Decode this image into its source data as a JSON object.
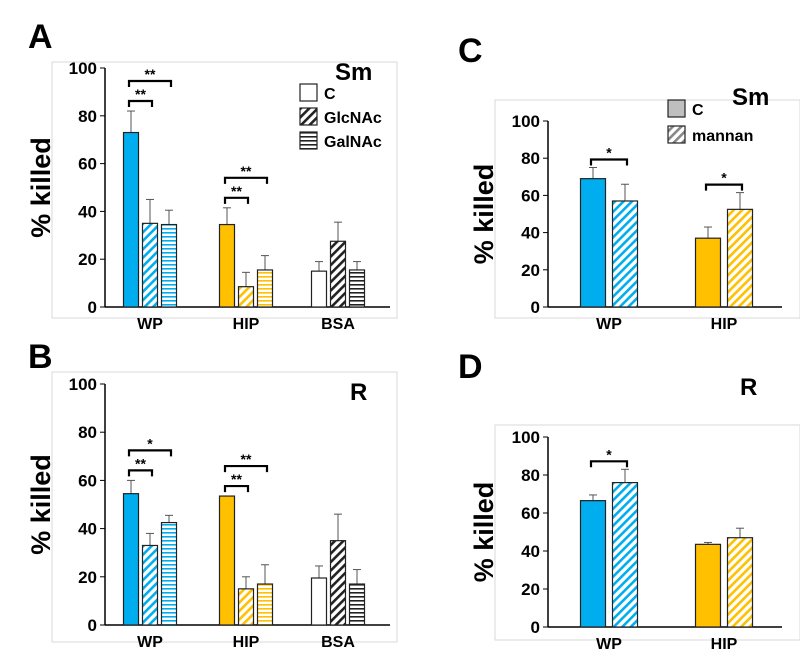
{
  "colors": {
    "WP": "#00aeef",
    "HIP": "#ffc000",
    "BSA": "#ffffff",
    "stroke": "#222222"
  },
  "chart_data": [
    {
      "type": "bar",
      "panel": "A",
      "title": "Sm",
      "ylabel": "% killed",
      "ylim": [
        0,
        100
      ],
      "yticks": [
        0,
        20,
        40,
        60,
        80,
        100
      ],
      "categories": [
        "WP",
        "HIP",
        "BSA"
      ],
      "series": [
        {
          "name": "C",
          "pattern": "solid",
          "values": [
            73,
            34.5,
            15
          ],
          "errors": [
            9,
            7,
            4
          ]
        },
        {
          "name": "GlcNAc",
          "pattern": "diagonal",
          "values": [
            35,
            8.5,
            27.5
          ],
          "errors": [
            10,
            6,
            8
          ]
        },
        {
          "name": "GalNAc",
          "pattern": "horizontal",
          "values": [
            34.5,
            15.5,
            15.5
          ],
          "errors": [
            6,
            6,
            3.5
          ]
        }
      ],
      "significance": [
        {
          "category": "WP",
          "from": 0,
          "to": 1,
          "label": "**"
        },
        {
          "category": "WP",
          "from": 0,
          "to": 2,
          "label": "**"
        },
        {
          "category": "HIP",
          "from": 0,
          "to": 1,
          "label": "**"
        },
        {
          "category": "HIP",
          "from": 0,
          "to": 2,
          "label": "**"
        }
      ],
      "legend": "top-right"
    },
    {
      "type": "bar",
      "panel": "B",
      "title": "R",
      "ylabel": "% killed",
      "ylim": [
        0,
        100
      ],
      "yticks": [
        0,
        20,
        40,
        60,
        80,
        100
      ],
      "categories": [
        "WP",
        "HIP",
        "BSA"
      ],
      "series": [
        {
          "name": "C",
          "pattern": "solid",
          "values": [
            54.5,
            53.5,
            19.5
          ],
          "errors": [
            5.5,
            0,
            5
          ]
        },
        {
          "name": "GlcNAc",
          "pattern": "diagonal",
          "values": [
            33,
            15,
            35
          ],
          "errors": [
            5,
            5,
            11
          ]
        },
        {
          "name": "GalNAc",
          "pattern": "horizontal",
          "values": [
            42.5,
            17,
            17
          ],
          "errors": [
            3,
            8,
            6
          ]
        }
      ],
      "significance": [
        {
          "category": "WP",
          "from": 0,
          "to": 1,
          "label": "**"
        },
        {
          "category": "WP",
          "from": 0,
          "to": 2,
          "label": "*"
        },
        {
          "category": "HIP",
          "from": 0,
          "to": 1,
          "label": "**"
        },
        {
          "category": "HIP",
          "from": 0,
          "to": 2,
          "label": "**"
        }
      ],
      "legend": "none"
    },
    {
      "type": "bar",
      "panel": "C",
      "title": "Sm",
      "ylabel": "% killed",
      "ylim": [
        0,
        100
      ],
      "yticks": [
        0,
        20,
        40,
        60,
        80,
        100
      ],
      "categories": [
        "WP",
        "HIP"
      ],
      "series": [
        {
          "name": "C",
          "pattern": "solid",
          "values": [
            69,
            37
          ],
          "errors": [
            6,
            6
          ]
        },
        {
          "name": "mannan",
          "pattern": "diagonal",
          "values": [
            57,
            52.5
          ],
          "errors": [
            9,
            9
          ]
        }
      ],
      "significance": [
        {
          "category": "WP",
          "from": 0,
          "to": 1,
          "label": "*"
        },
        {
          "category": "HIP",
          "from": 0,
          "to": 1,
          "label": "*"
        }
      ],
      "legend": "top-right"
    },
    {
      "type": "bar",
      "panel": "D",
      "title": "R",
      "ylabel": "% killed",
      "ylim": [
        0,
        100
      ],
      "yticks": [
        0,
        20,
        40,
        60,
        80,
        100
      ],
      "categories": [
        "WP",
        "HIP"
      ],
      "series": [
        {
          "name": "C",
          "pattern": "solid",
          "values": [
            66.5,
            43.5
          ],
          "errors": [
            3,
            1
          ]
        },
        {
          "name": "mannan",
          "pattern": "diagonal",
          "values": [
            76,
            47
          ],
          "errors": [
            7,
            5
          ]
        }
      ],
      "significance": [
        {
          "category": "WP",
          "from": 0,
          "to": 1,
          "label": "*"
        }
      ],
      "legend": "none"
    }
  ]
}
